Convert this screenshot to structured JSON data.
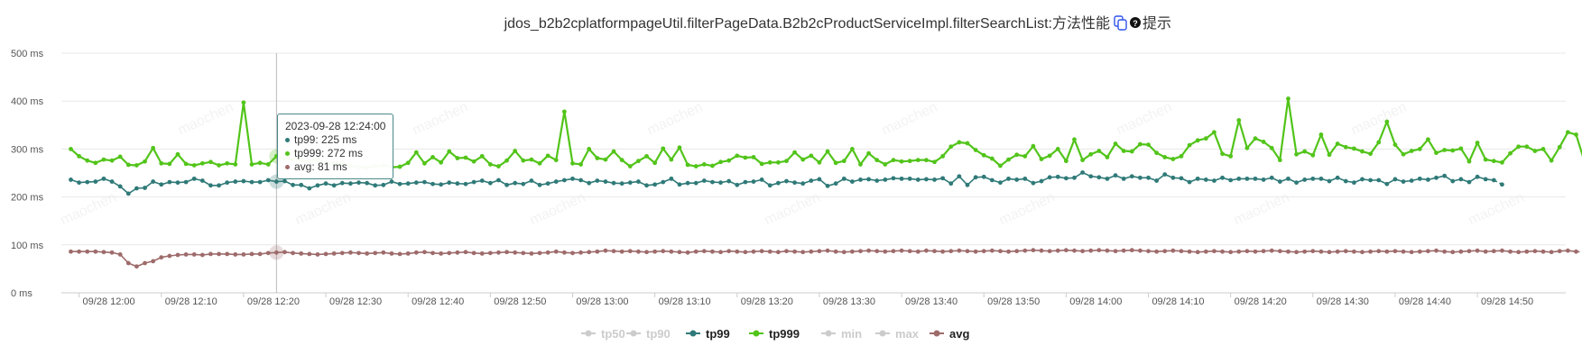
{
  "chart_data": {
    "type": "line",
    "title": "jdos_b2b2cplatformpageUtil.filterPageData.B2b2cProductServiceImpl.filterSearchList:方法性能",
    "hint_label": "提示",
    "xlabel": "",
    "ylabel": "",
    "ylim": [
      0,
      500
    ],
    "y_ticks": [
      "0 ms",
      "100 ms",
      "200 ms",
      "300 ms",
      "400 ms",
      "500 ms"
    ],
    "x_ticks": [
      "09/28 12:00",
      "09/28 12:10",
      "09/28 12:20",
      "09/28 12:30",
      "09/28 12:40",
      "09/28 12:50",
      "09/28 13:00",
      "09/28 13:10",
      "09/28 13:20",
      "09/28 13:30",
      "09/28 13:40",
      "09/28 13:50",
      "09/28 14:00",
      "09/28 14:10",
      "09/28 14:20",
      "09/28 14:30",
      "09/28 14:40",
      "09/28 14:50"
    ],
    "x_start_minute": -1,
    "x_end_minute": 178,
    "grid": true,
    "legend_position": "bottom",
    "series": [
      {
        "name": "tp50",
        "visible": false,
        "color": "#cccccc",
        "values": []
      },
      {
        "name": "tp90",
        "visible": false,
        "color": "#cccccc",
        "values": []
      },
      {
        "name": "tp99",
        "visible": true,
        "color": "#2f7a78",
        "values": [
          236,
          230,
          231,
          232,
          238,
          232,
          222,
          207,
          218,
          219,
          232,
          226,
          231,
          230,
          231,
          238,
          234,
          224,
          224,
          230,
          232,
          233,
          231,
          231,
          235,
          232,
          233,
          225,
          225,
          218,
          224,
          228,
          224,
          229,
          228,
          230,
          229,
          224,
          225,
          232,
          227,
          228,
          230,
          231,
          227,
          226,
          230,
          228,
          227,
          231,
          234,
          229,
          235,
          225,
          229,
          227,
          234,
          225,
          228,
          232,
          235,
          238,
          235,
          229,
          234,
          232,
          229,
          228,
          230,
          232,
          224,
          226,
          231,
          238,
          226,
          229,
          229,
          234,
          231,
          230,
          233,
          225,
          231,
          232,
          236,
          224,
          229,
          233,
          230,
          228,
          234,
          237,
          223,
          228,
          238,
          232,
          236,
          237,
          234,
          236,
          239,
          238,
          238,
          236,
          237,
          236,
          239,
          228,
          243,
          225,
          241,
          242,
          235,
          230,
          238,
          236,
          238,
          229,
          233,
          241,
          242,
          239,
          240,
          251,
          243,
          241,
          238,
          245,
          238,
          243,
          240,
          240,
          234,
          247,
          240,
          239,
          231,
          238,
          236,
          234,
          240,
          235,
          238,
          238,
          238,
          236,
          240,
          232,
          238,
          230,
          236,
          238,
          238,
          233,
          240,
          233,
          230,
          237,
          235,
          235,
          227,
          237,
          232,
          234,
          238,
          236,
          240,
          244,
          233,
          237,
          231,
          242,
          237,
          235,
          226
        ]
      },
      {
        "name": "tp999",
        "visible": true,
        "color": "#52c41a",
        "values": [
          300,
          285,
          276,
          271,
          278,
          276,
          284,
          267,
          266,
          274,
          302,
          270,
          269,
          289,
          269,
          266,
          270,
          273,
          266,
          270,
          268,
          397,
          268,
          271,
          268,
          285,
          280,
          278,
          277,
          275,
          278,
          272,
          270,
          270,
          265,
          262,
          261,
          264,
          266,
          262,
          263,
          271,
          293,
          270,
          283,
          272,
          295,
          281,
          282,
          274,
          285,
          268,
          264,
          276,
          296,
          276,
          278,
          270,
          286,
          277,
          378,
          270,
          268,
          300,
          281,
          278,
          295,
          277,
          264,
          275,
          285,
          271,
          301,
          278,
          303,
          267,
          264,
          268,
          265,
          273,
          276,
          286,
          282,
          283,
          269,
          272,
          272,
          275,
          293,
          278,
          286,
          272,
          295,
          271,
          275,
          300,
          268,
          291,
          277,
          268,
          277,
          274,
          275,
          277,
          277,
          273,
          285,
          305,
          314,
          312,
          298,
          287,
          280,
          265,
          278,
          288,
          285,
          306,
          279,
          286,
          300,
          275,
          320,
          277,
          289,
          296,
          283,
          311,
          296,
          295,
          310,
          309,
          292,
          283,
          279,
          285,
          308,
          318,
          322,
          335,
          290,
          285,
          360,
          302,
          322,
          315,
          302,
          277,
          405,
          289,
          295,
          287,
          330,
          288,
          311,
          304,
          301,
          295,
          290,
          314,
          357,
          309,
          289,
          296,
          300,
          320,
          292,
          298,
          297,
          301,
          274,
          313,
          278,
          275,
          272,
          291,
          305,
          305,
          296,
          300,
          276,
          304,
          335,
          330,
          275,
          280
        ]
      },
      {
        "name": "min",
        "visible": false,
        "color": "#cccccc",
        "values": []
      },
      {
        "name": "max",
        "visible": false,
        "color": "#cccccc",
        "values": []
      },
      {
        "name": "avg",
        "visible": true,
        "color": "#9e6b6b",
        "values": [
          86,
          86,
          86,
          86,
          85,
          84,
          80,
          62,
          55,
          62,
          66,
          74,
          77,
          79,
          80,
          80,
          79,
          81,
          81,
          81,
          80,
          80,
          81,
          81,
          83,
          84,
          85,
          83,
          82,
          81,
          80,
          81,
          82,
          83,
          84,
          83,
          82,
          83,
          84,
          82,
          81,
          82,
          84,
          85,
          83,
          82,
          83,
          84,
          85,
          83,
          82,
          83,
          84,
          85,
          84,
          83,
          82,
          83,
          84,
          86,
          84,
          83,
          84,
          85,
          86,
          88,
          87,
          86,
          87,
          86,
          85,
          86,
          87,
          86,
          85,
          84,
          86,
          87,
          86,
          85,
          87,
          86,
          85,
          86,
          87,
          86,
          85,
          87,
          86,
          85,
          86,
          87,
          88,
          86,
          85,
          86,
          87,
          88,
          87,
          86,
          87,
          88,
          87,
          86,
          88,
          87,
          86,
          87,
          88,
          87,
          86,
          87,
          88,
          87,
          86,
          87,
          88,
          89,
          88,
          87,
          88,
          89,
          88,
          87,
          88,
          89,
          88,
          87,
          88,
          89,
          88,
          87,
          86,
          87,
          88,
          87,
          86,
          85,
          86,
          87,
          86,
          85,
          86,
          87,
          86,
          87,
          88,
          87,
          86,
          85,
          86,
          87,
          86,
          85,
          86,
          87,
          86,
          85,
          86,
          87,
          86,
          87,
          86,
          85,
          86,
          87,
          88,
          86,
          85,
          86,
          87,
          88,
          86,
          87,
          88,
          86,
          85,
          86,
          87,
          86,
          85,
          87,
          88,
          86,
          85
        ]
      }
    ]
  },
  "tooltip": {
    "time": "2023-09-28 12:24:00",
    "rows": [
      {
        "text": "tp99: 225 ms",
        "color": "#2f7a78"
      },
      {
        "text": "tp999: 272 ms",
        "color": "#52c41a"
      },
      {
        "text": "avg: 81 ms",
        "color": "#9e6b6b"
      }
    ]
  },
  "watermark": "maochen"
}
